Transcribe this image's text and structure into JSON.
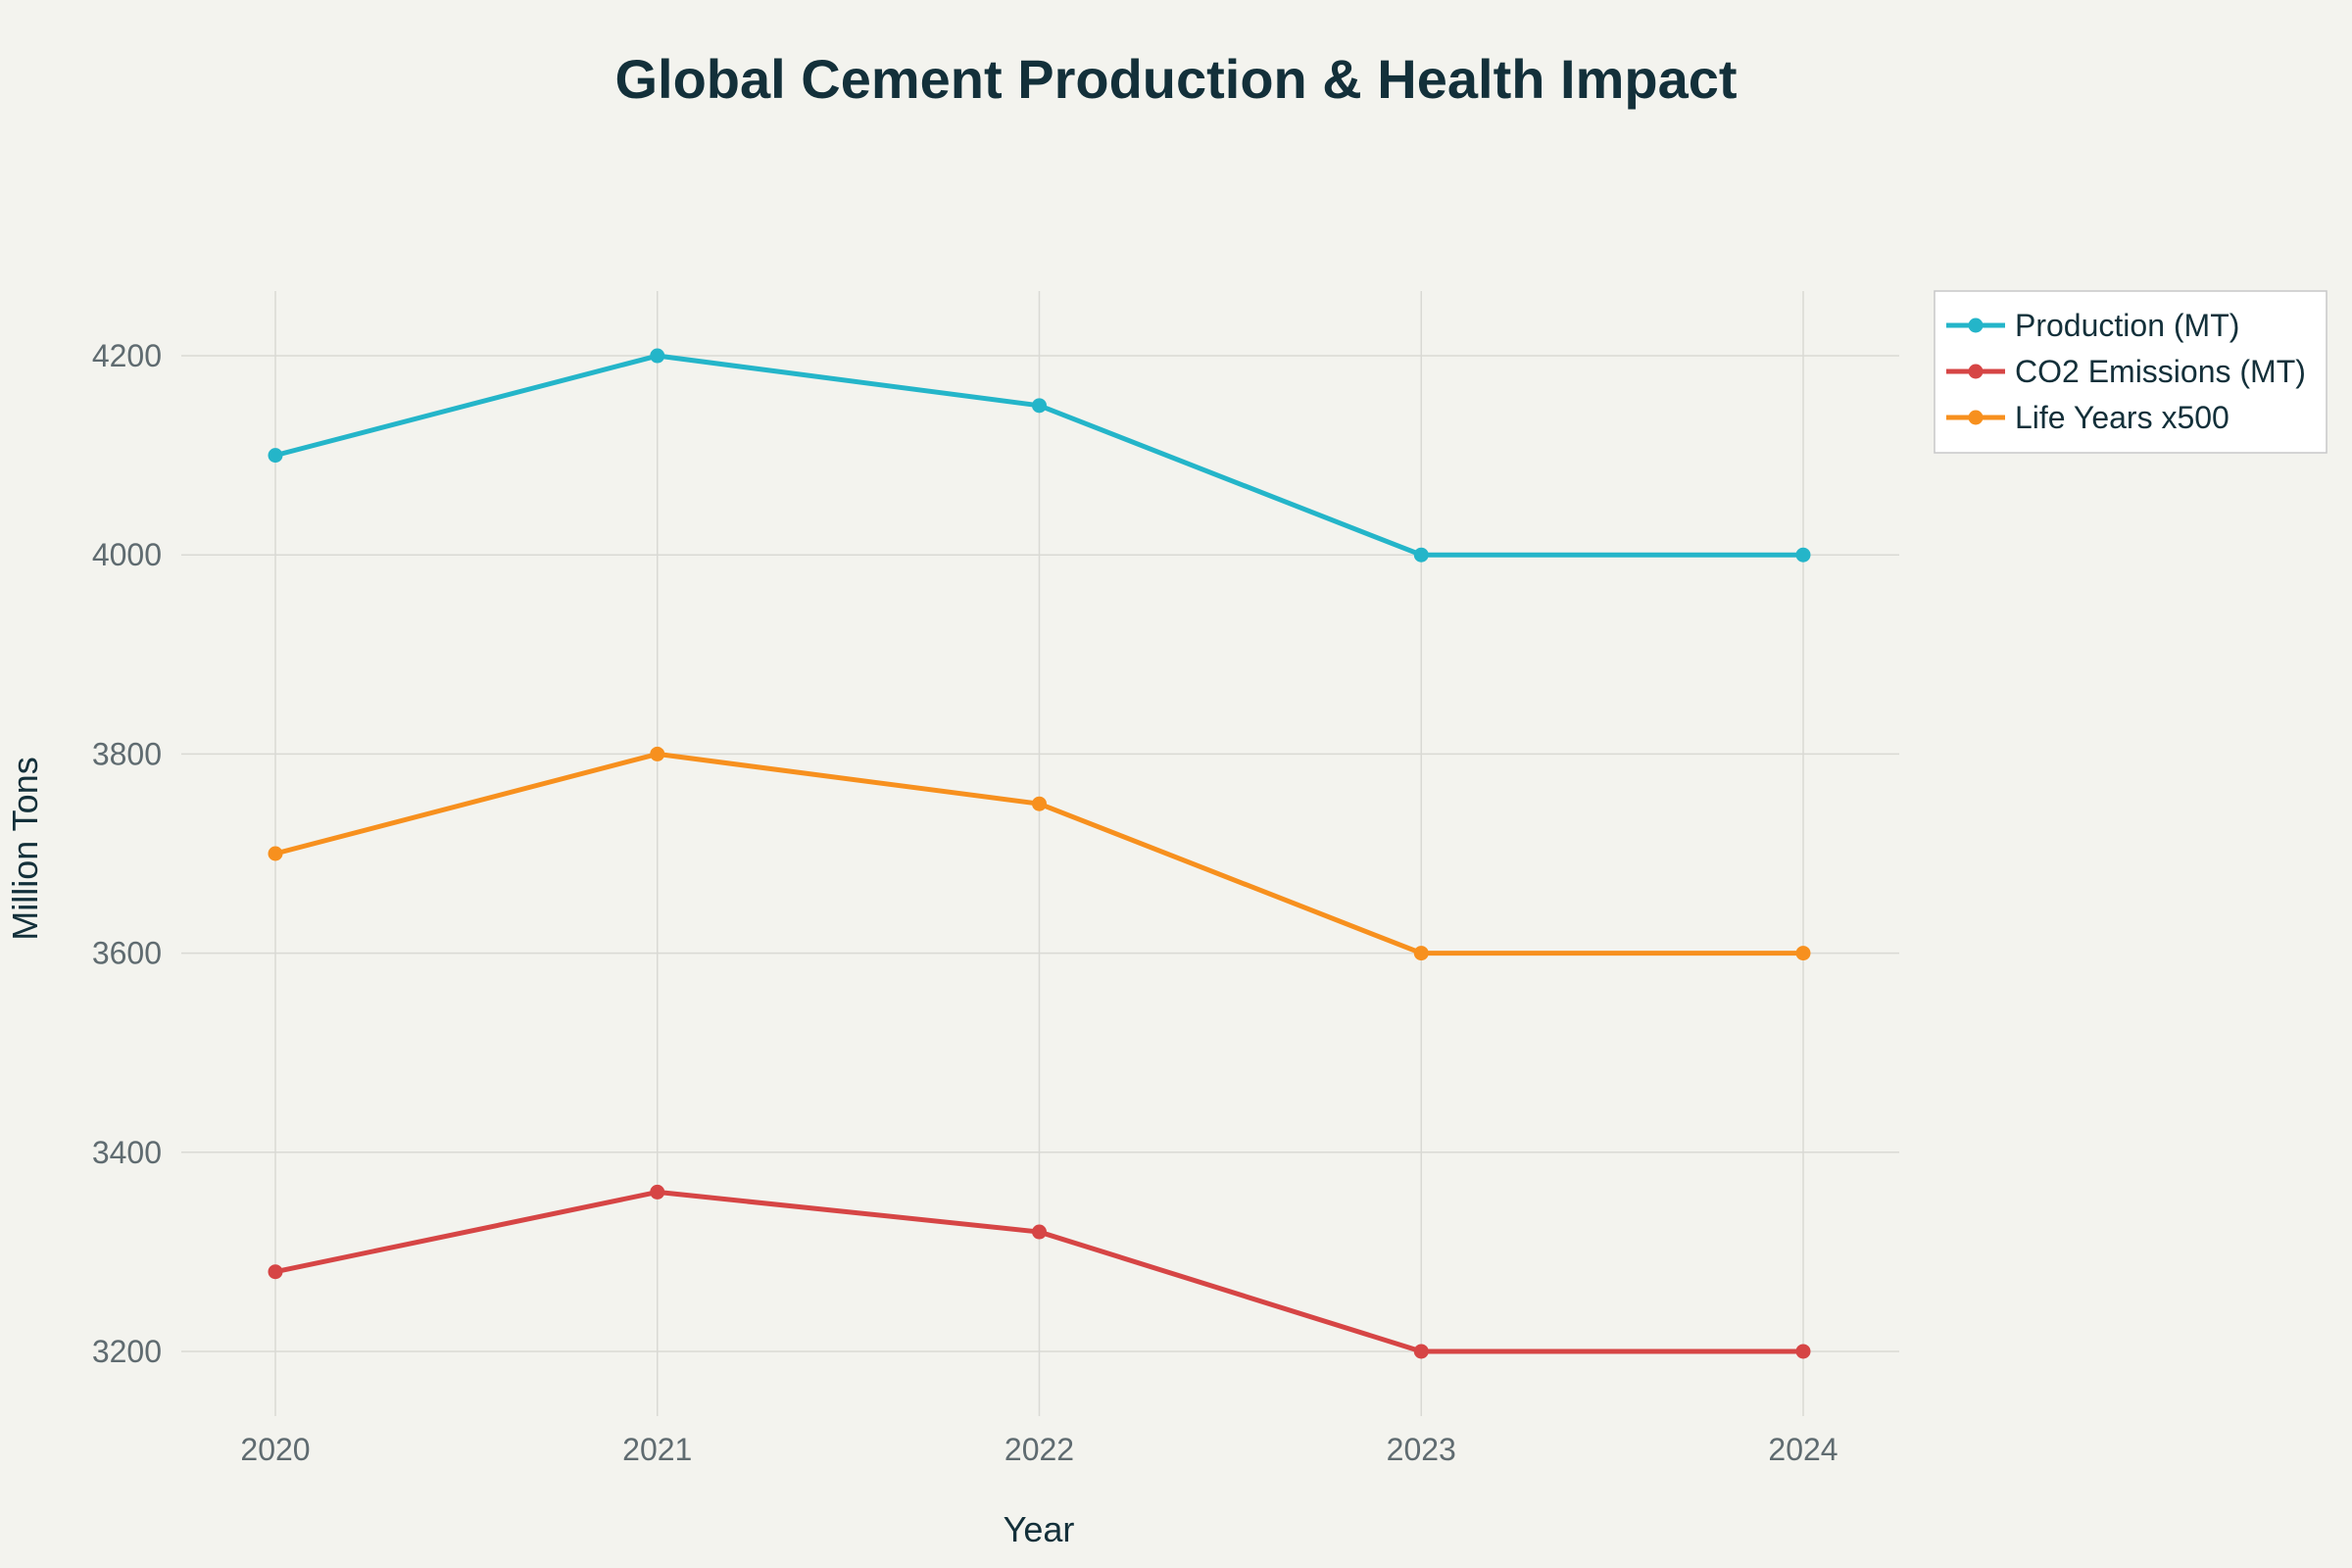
{
  "chart_data": {
    "type": "line",
    "title": "Global Cement Production & Health Impact",
    "xlabel": "Year",
    "ylabel": "Million Tons",
    "categories": [
      "2020",
      "2021",
      "2022",
      "2023",
      "2024"
    ],
    "y_ticks": [
      3200,
      3400,
      3600,
      3800,
      4000,
      4200
    ],
    "ylim": [
      3135,
      4265
    ],
    "grid": true,
    "legend_position": "top-right",
    "series": [
      {
        "name": "Production (MT)",
        "color": "#24b5c9",
        "values": [
          4100,
          4200,
          4150,
          4000,
          4000
        ]
      },
      {
        "name": "CO2 Emissions (MT)",
        "color": "#d64545",
        "values": [
          3280,
          3360,
          3320,
          3200,
          3200
        ]
      },
      {
        "name": "Life Years x500",
        "color": "#f7901e",
        "values": [
          3700,
          3800,
          3750,
          3600,
          3600
        ]
      }
    ]
  }
}
